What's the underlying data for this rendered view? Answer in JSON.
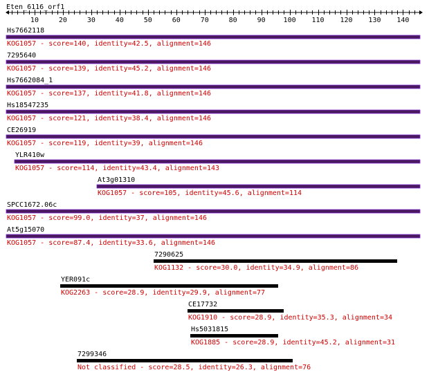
{
  "title": "Eten_6116_orf1",
  "axis": {
    "min": 0,
    "max": 146,
    "minor_tick_step": 2,
    "label_values": [
      10,
      20,
      30,
      40,
      50,
      60,
      70,
      80,
      90,
      100,
      110,
      120,
      130,
      140
    ],
    "labels": [
      "10",
      "20",
      "30",
      "40",
      "50",
      "60",
      "70",
      "80",
      "90",
      "100",
      "110",
      "120",
      "130",
      "140"
    ]
  },
  "colors": {
    "axis": "#000000",
    "name_text": "#000000",
    "desc_text": "#cc0000",
    "kog1057_bar": "#4b1a5e",
    "kog1057_bar_edge": "#7a2bd0",
    "other_bar": "#000000"
  },
  "hits": [
    {
      "name": "Hs7662118",
      "start": 0,
      "end": 146,
      "description": "KOG1057 - score=140, identity=42.5, alignment=146",
      "bar_style": "kog1057"
    },
    {
      "name": "7295640",
      "start": 0,
      "end": 146,
      "description": "KOG1057 - score=139, identity=45.2, alignment=146",
      "bar_style": "kog1057"
    },
    {
      "name": "Hs7662084_1",
      "start": 0,
      "end": 146,
      "description": "KOG1057 - score=137, identity=41.8, alignment=146",
      "bar_style": "kog1057"
    },
    {
      "name": "Hs18547235",
      "start": 0,
      "end": 146,
      "description": "KOG1057 - score=121, identity=38.4, alignment=146",
      "bar_style": "kog1057"
    },
    {
      "name": "CE26919",
      "start": 0,
      "end": 146,
      "description": "KOG1057 - score=119, identity=39, alignment=146",
      "bar_style": "kog1057"
    },
    {
      "name": "YLR410w",
      "start": 3,
      "end": 146,
      "description": "KOG1057 - score=114, identity=43.4, alignment=143",
      "bar_style": "kog1057"
    },
    {
      "name": "At3g01310",
      "start": 32,
      "end": 146,
      "description": "KOG1057 - score=105, identity=45.6, alignment=114",
      "bar_style": "kog1057"
    },
    {
      "name": "SPCC1672.06c",
      "start": 0,
      "end": 146,
      "description": "KOG1057 - score=99.0, identity=37, alignment=146",
      "bar_style": "kog1057"
    },
    {
      "name": "At5g15070",
      "start": 0,
      "end": 146,
      "description": "KOG1057 - score=87.4, identity=33.6, alignment=146",
      "bar_style": "kog1057"
    },
    {
      "name": "7290625",
      "start": 52,
      "end": 138,
      "description": "KOG1132 - score=30.0, identity=34.9, alignment=86",
      "bar_style": "other"
    },
    {
      "name": "YER091c",
      "start": 19,
      "end": 96,
      "description": "KOG2263 - score=28.9, identity=29.9, alignment=77",
      "bar_style": "other"
    },
    {
      "name": "CE17732",
      "start": 64,
      "end": 98,
      "description": "KOG1910 - score=28.9, identity=35.3, alignment=34",
      "bar_style": "other"
    },
    {
      "name": "Hs5031815",
      "start": 65,
      "end": 96,
      "description": "KOG1885 - score=28.9, identity=45.2, alignment=31",
      "bar_style": "other"
    },
    {
      "name": "7299346",
      "start": 25,
      "end": 101,
      "description": "Not classified - score=28.5, identity=26.3, alignment=76",
      "bar_style": "other"
    }
  ]
}
